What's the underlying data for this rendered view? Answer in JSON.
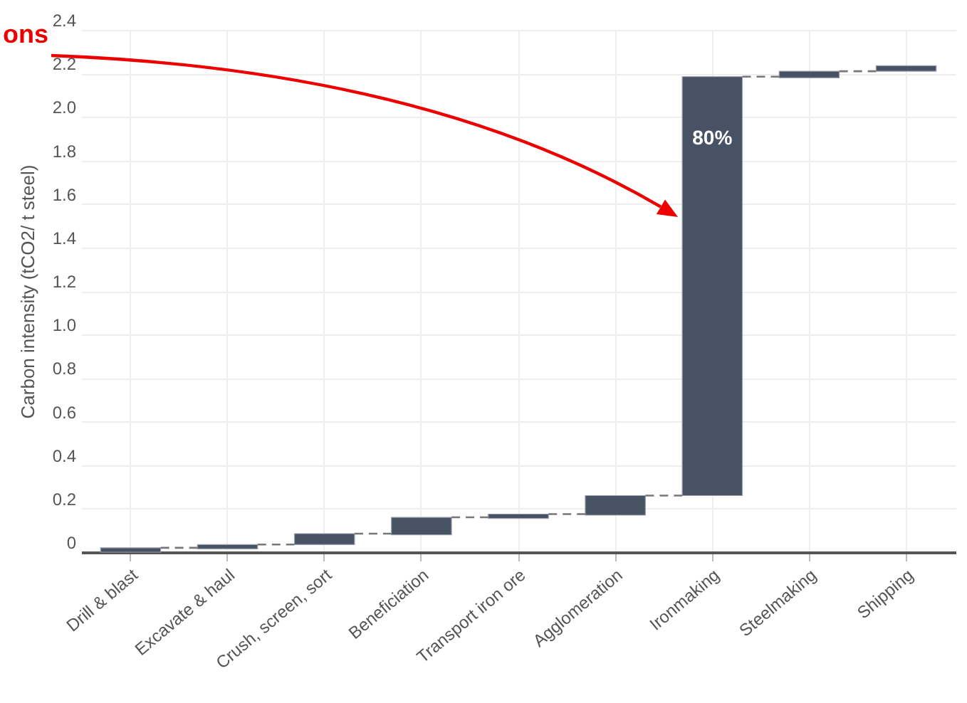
{
  "chart_data": {
    "type": "bar",
    "ylabel": "Carbon intensity (tCO2/ t steel)",
    "categories": [
      "Drill & blast",
      "Excavate & haul",
      "Crush, screen, sort",
      "Beneficiation",
      "Transport iron ore",
      "Agglomeration",
      "Ironmaking",
      "Steelmaking",
      "Shipping"
    ],
    "base": [
      0,
      0.015,
      0.035,
      0.08,
      0.155,
      0.17,
      0.26,
      2.18,
      2.21
    ],
    "values": [
      0.02,
      0.02,
      0.05,
      0.08,
      0.02,
      0.09,
      1.925,
      0.03,
      0.025
    ],
    "color": "#475264",
    "ylim": [
      0,
      2.4
    ],
    "yticks": [
      0,
      0.2,
      0.4,
      0.6,
      0.8,
      {
        "value": 1,
        "label": "1.0"
      },
      1.2,
      1.4,
      1.6,
      1.8,
      {
        "value": 2,
        "label": "2.0"
      },
      2.2,
      2.4
    ],
    "grid": true,
    "annotations": [
      "ons",
      {
        "text": "80%",
        "x": "Ironmaking",
        "y": 1.9
      }
    ]
  }
}
